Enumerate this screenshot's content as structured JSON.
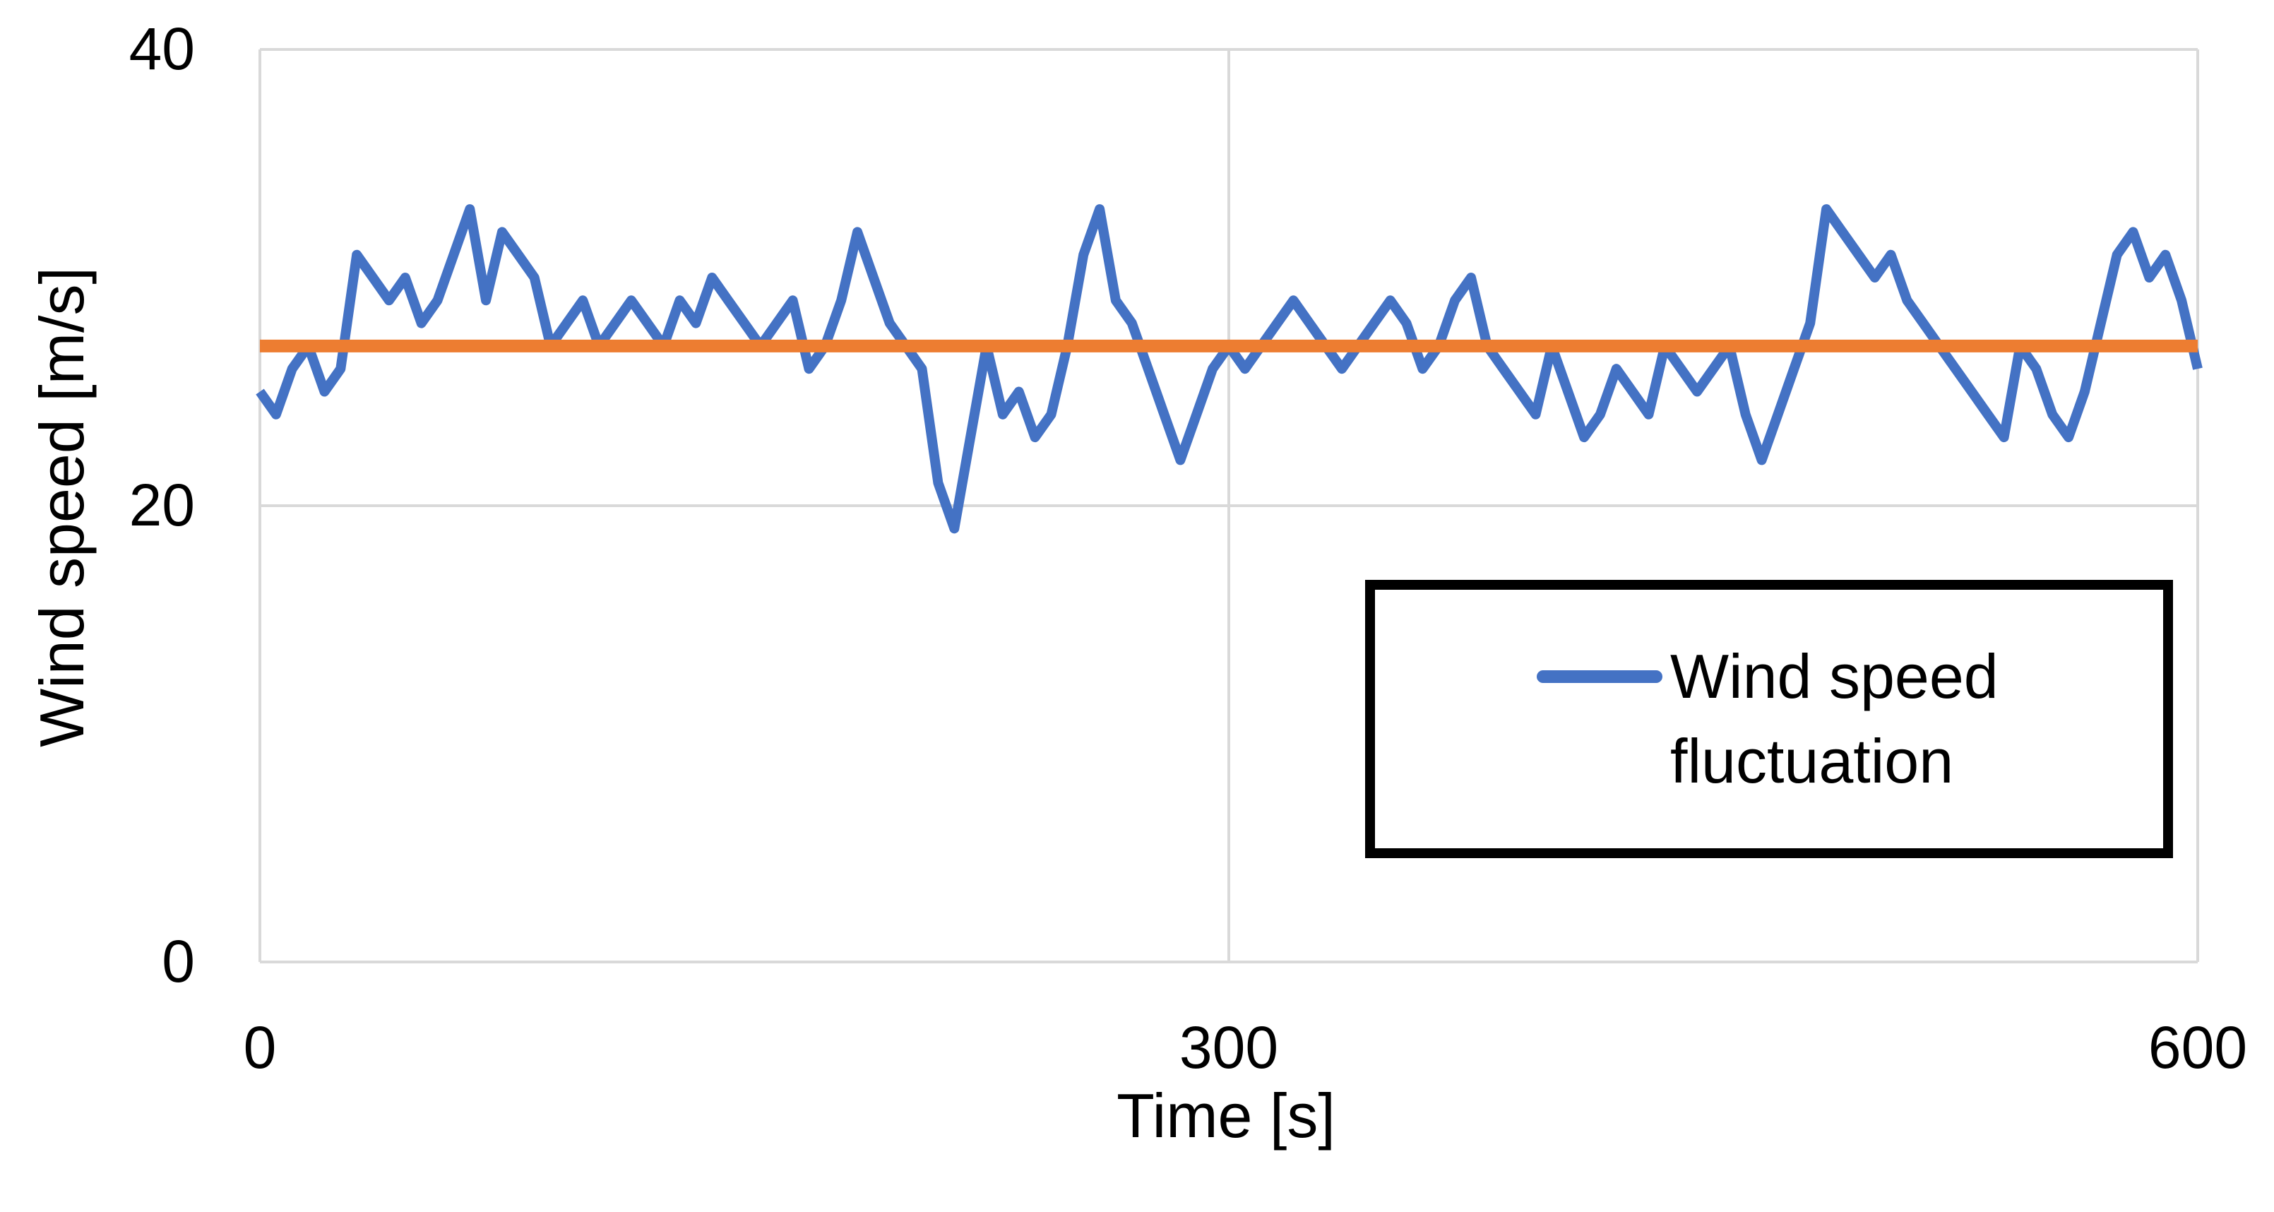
{
  "chart_data": {
    "type": "line",
    "xlabel": "Time [s]",
    "ylabel": "Wind speed [m/s]",
    "xlim": [
      0,
      600
    ],
    "ylim": [
      0,
      40
    ],
    "xticks": [
      "0",
      "300",
      "600"
    ],
    "yticks": [
      "0",
      "20",
      "40"
    ],
    "grid": true,
    "legend_position": "bottom-right",
    "series": [
      {
        "name": "Wind speed fluctuation",
        "color": "#4472C4",
        "x": [
          0,
          5,
          10,
          15,
          20,
          25,
          30,
          35,
          40,
          45,
          50,
          55,
          60,
          65,
          70,
          75,
          80,
          85,
          90,
          95,
          100,
          105,
          110,
          115,
          120,
          125,
          130,
          135,
          140,
          145,
          150,
          155,
          160,
          165,
          170,
          175,
          180,
          185,
          190,
          195,
          200,
          205,
          210,
          215,
          220,
          225,
          230,
          235,
          240,
          245,
          250,
          255,
          260,
          265,
          270,
          275,
          280,
          285,
          290,
          295,
          300,
          305,
          310,
          315,
          320,
          325,
          330,
          335,
          340,
          345,
          350,
          355,
          360,
          365,
          370,
          375,
          380,
          385,
          390,
          395,
          400,
          405,
          410,
          415,
          420,
          425,
          430,
          435,
          440,
          445,
          450,
          455,
          460,
          465,
          470,
          475,
          480,
          485,
          490,
          495,
          500,
          505,
          510,
          515,
          520,
          525,
          530,
          535,
          540,
          545,
          550,
          555,
          560,
          565,
          570,
          575,
          580,
          585,
          590,
          595,
          600
        ],
        "values": [
          25,
          24,
          26,
          27,
          25,
          26,
          31,
          30,
          29,
          30,
          28,
          29,
          31,
          33,
          29,
          32,
          31,
          30,
          27,
          28,
          29,
          27,
          28,
          29,
          28,
          27,
          29,
          28,
          30,
          29,
          28,
          27,
          28,
          29,
          26,
          27,
          29,
          32,
          30,
          28,
          27,
          26,
          21,
          19,
          23,
          27,
          24,
          25,
          23,
          24,
          27,
          31,
          33,
          29,
          28,
          26,
          24,
          22,
          24,
          26,
          27,
          26,
          27,
          28,
          29,
          28,
          27,
          26,
          27,
          28,
          29,
          28,
          26,
          27,
          29,
          30,
          27,
          26,
          25,
          24,
          27,
          25,
          23,
          24,
          26,
          25,
          24,
          27,
          26,
          25,
          26,
          27,
          24,
          22,
          24,
          26,
          28,
          33,
          32,
          31,
          30,
          31,
          29,
          28,
          27,
          26,
          25,
          24,
          23,
          27,
          26,
          24,
          23,
          25,
          28,
          31,
          32,
          30,
          31,
          29,
          26
        ]
      },
      {
        "name": "",
        "color": "#ED7D31",
        "x": [
          0,
          600
        ],
        "values": [
          27,
          27
        ]
      }
    ]
  }
}
